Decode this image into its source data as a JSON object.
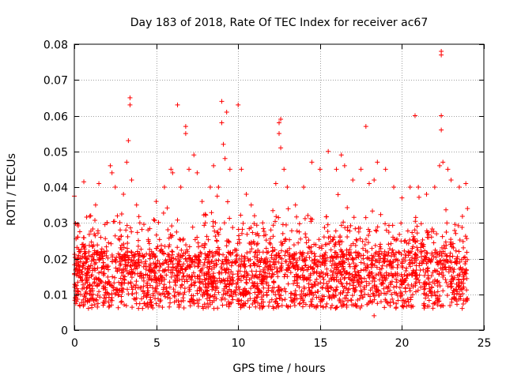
{
  "chart_data": {
    "type": "scatter",
    "title": "Day 183 of 2018, Rate Of TEC Index for receiver ac67",
    "xlabel": "GPS time / hours",
    "ylabel": "ROTI / TECUs",
    "xlim": [
      0,
      25
    ],
    "ylim": [
      0,
      0.08
    ],
    "xticks": [
      0,
      5,
      10,
      15,
      20,
      25
    ],
    "xtick_labels": [
      "0",
      "5",
      "10",
      "15",
      "20",
      "25"
    ],
    "yticks": [
      0,
      0.01,
      0.02,
      0.03,
      0.04,
      0.05,
      0.06,
      0.07,
      0.08
    ],
    "ytick_labels": [
      "0",
      "0.01",
      "0.02",
      "0.03",
      "0.04",
      "0.05",
      "0.06",
      "0.07",
      "0.08"
    ],
    "grid": true,
    "marker": "+",
    "color": "#ff0000",
    "series": [
      {
        "name": "ROTI",
        "description": "Dense cloud of ROTI samples from 0 to 24 h, mostly between 0.005 and 0.03 TECU/s; representative outliers listed",
        "points": [
          [
            0.1,
            0.009
          ],
          [
            0.2,
            0.026
          ],
          [
            0.3,
            0.022
          ],
          [
            0.5,
            0.018
          ],
          [
            0.8,
            0.012
          ],
          [
            1.0,
            0.032
          ],
          [
            1.3,
            0.035
          ],
          [
            1.5,
            0.041
          ],
          [
            2.0,
            0.03
          ],
          [
            2.2,
            0.046
          ],
          [
            2.3,
            0.044
          ],
          [
            2.5,
            0.04
          ],
          [
            2.8,
            0.028
          ],
          [
            3.0,
            0.038
          ],
          [
            3.2,
            0.047
          ],
          [
            3.3,
            0.053
          ],
          [
            3.4,
            0.065
          ],
          [
            3.4,
            0.063
          ],
          [
            3.5,
            0.042
          ],
          [
            3.8,
            0.035
          ],
          [
            4.0,
            0.03
          ],
          [
            4.5,
            0.028
          ],
          [
            5.0,
            0.036
          ],
          [
            5.5,
            0.04
          ],
          [
            5.9,
            0.045
          ],
          [
            6.0,
            0.044
          ],
          [
            6.3,
            0.063
          ],
          [
            6.5,
            0.04
          ],
          [
            6.8,
            0.057
          ],
          [
            6.8,
            0.055
          ],
          [
            7.0,
            0.045
          ],
          [
            7.3,
            0.049
          ],
          [
            7.5,
            0.044
          ],
          [
            7.8,
            0.036
          ],
          [
            8.0,
            0.03
          ],
          [
            8.3,
            0.04
          ],
          [
            8.5,
            0.046
          ],
          [
            8.8,
            0.04
          ],
          [
            9.0,
            0.064
          ],
          [
            9.0,
            0.058
          ],
          [
            9.1,
            0.052
          ],
          [
            9.2,
            0.048
          ],
          [
            9.3,
            0.061
          ],
          [
            9.5,
            0.045
          ],
          [
            10.0,
            0.063
          ],
          [
            10.2,
            0.045
          ],
          [
            10.5,
            0.038
          ],
          [
            10.8,
            0.035
          ],
          [
            11.0,
            0.032
          ],
          [
            11.5,
            0.03
          ],
          [
            12.0,
            0.028
          ],
          [
            12.3,
            0.041
          ],
          [
            12.5,
            0.058
          ],
          [
            12.6,
            0.059
          ],
          [
            12.5,
            0.055
          ],
          [
            12.6,
            0.051
          ],
          [
            12.8,
            0.045
          ],
          [
            13.0,
            0.04
          ],
          [
            13.5,
            0.035
          ],
          [
            14.0,
            0.04
          ],
          [
            14.5,
            0.047
          ],
          [
            15.0,
            0.045
          ],
          [
            15.5,
            0.05
          ],
          [
            16.0,
            0.045
          ],
          [
            16.3,
            0.049
          ],
          [
            16.5,
            0.046
          ],
          [
            17.0,
            0.042
          ],
          [
            17.5,
            0.045
          ],
          [
            17.8,
            0.057
          ],
          [
            18.0,
            0.041
          ],
          [
            18.3,
            0.042
          ],
          [
            18.5,
            0.047
          ],
          [
            19.0,
            0.045
          ],
          [
            19.5,
            0.04
          ],
          [
            20.0,
            0.037
          ],
          [
            20.5,
            0.04
          ],
          [
            20.8,
            0.06
          ],
          [
            21.0,
            0.04
          ],
          [
            21.5,
            0.038
          ],
          [
            22.0,
            0.04
          ],
          [
            22.3,
            0.046
          ],
          [
            22.4,
            0.078
          ],
          [
            22.4,
            0.077
          ],
          [
            22.4,
            0.06
          ],
          [
            22.4,
            0.056
          ],
          [
            22.5,
            0.047
          ],
          [
            22.8,
            0.045
          ],
          [
            23.0,
            0.042
          ],
          [
            23.5,
            0.04
          ],
          [
            23.9,
            0.041
          ],
          [
            24.0,
            0.034
          ],
          [
            0.5,
            0.014
          ],
          [
            1.0,
            0.011
          ],
          [
            1.5,
            0.016
          ],
          [
            2.0,
            0.013
          ],
          [
            2.5,
            0.01
          ],
          [
            3.0,
            0.017
          ],
          [
            3.5,
            0.012
          ],
          [
            4.0,
            0.015
          ],
          [
            4.5,
            0.011
          ],
          [
            5.0,
            0.014
          ],
          [
            5.5,
            0.01
          ],
          [
            6.0,
            0.016
          ],
          [
            6.5,
            0.012
          ],
          [
            7.0,
            0.015
          ],
          [
            7.5,
            0.011
          ],
          [
            8.0,
            0.014
          ],
          [
            8.5,
            0.012
          ],
          [
            9.0,
            0.016
          ],
          [
            9.5,
            0.013
          ],
          [
            10.0,
            0.015
          ],
          [
            10.5,
            0.011
          ],
          [
            11.0,
            0.018
          ],
          [
            11.5,
            0.014
          ],
          [
            12.0,
            0.017
          ],
          [
            12.5,
            0.012
          ],
          [
            13.0,
            0.015
          ],
          [
            13.5,
            0.011
          ],
          [
            14.0,
            0.014
          ],
          [
            14.5,
            0.012
          ],
          [
            15.0,
            0.015
          ],
          [
            15.5,
            0.011
          ],
          [
            16.0,
            0.014
          ],
          [
            16.5,
            0.012
          ],
          [
            17.0,
            0.015
          ],
          [
            17.5,
            0.011
          ],
          [
            18.0,
            0.013
          ],
          [
            18.3,
            0.004
          ],
          [
            18.5,
            0.011
          ],
          [
            19.0,
            0.014
          ],
          [
            19.5,
            0.012
          ],
          [
            20.0,
            0.015
          ],
          [
            20.5,
            0.011
          ],
          [
            21.0,
            0.014
          ],
          [
            21.5,
            0.01
          ],
          [
            22.0,
            0.013
          ],
          [
            22.5,
            0.011
          ],
          [
            23.0,
            0.014
          ],
          [
            23.5,
            0.01
          ],
          [
            23.9,
            0.008
          ],
          [
            0.05,
            0.009
          ]
        ]
      }
    ]
  }
}
